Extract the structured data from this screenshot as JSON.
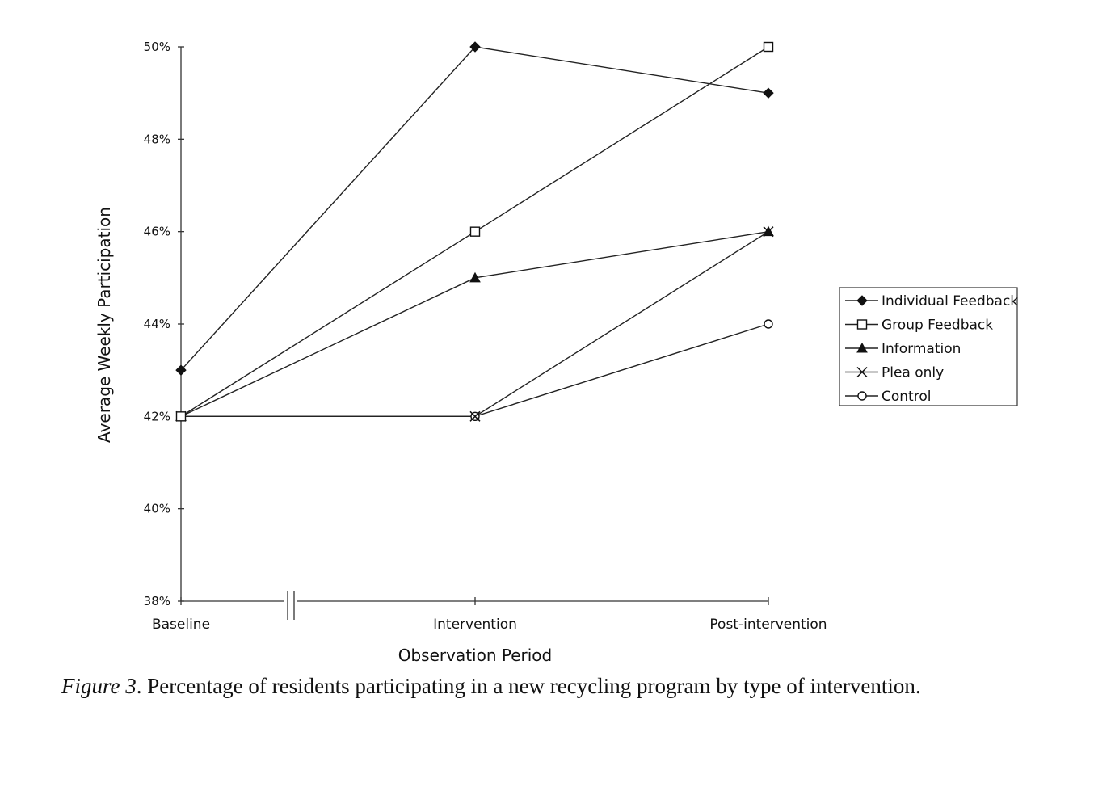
{
  "chart_data": {
    "type": "line",
    "categories": [
      "Baseline",
      "Intervention",
      "Post-intervention"
    ],
    "series": [
      {
        "name": "Individual Feedback",
        "marker": "diamond",
        "values": [
          43,
          50,
          49
        ]
      },
      {
        "name": "Group Feedback",
        "marker": "square-open",
        "values": [
          42,
          46,
          50
        ]
      },
      {
        "name": "Information",
        "marker": "triangle",
        "values": [
          42,
          45,
          46
        ]
      },
      {
        "name": "Plea only",
        "marker": "x",
        "values": [
          42,
          42,
          46
        ]
      },
      {
        "name": "Control",
        "marker": "circle-open",
        "values": [
          42,
          42,
          44
        ]
      }
    ],
    "yticks": [
      "38%",
      "40%",
      "42%",
      "44%",
      "46%",
      "48%",
      "50%"
    ],
    "ylim": [
      38,
      50
    ],
    "xlabel": "Observation Period",
    "ylabel": "Average Weekly Participation",
    "legend_position": "right",
    "axis_break": "between Baseline and Intervention",
    "grid": false
  },
  "caption": {
    "label": "Figure 3",
    "text": ". Percentage of residents participating in a new recycling program by type of intervention."
  }
}
